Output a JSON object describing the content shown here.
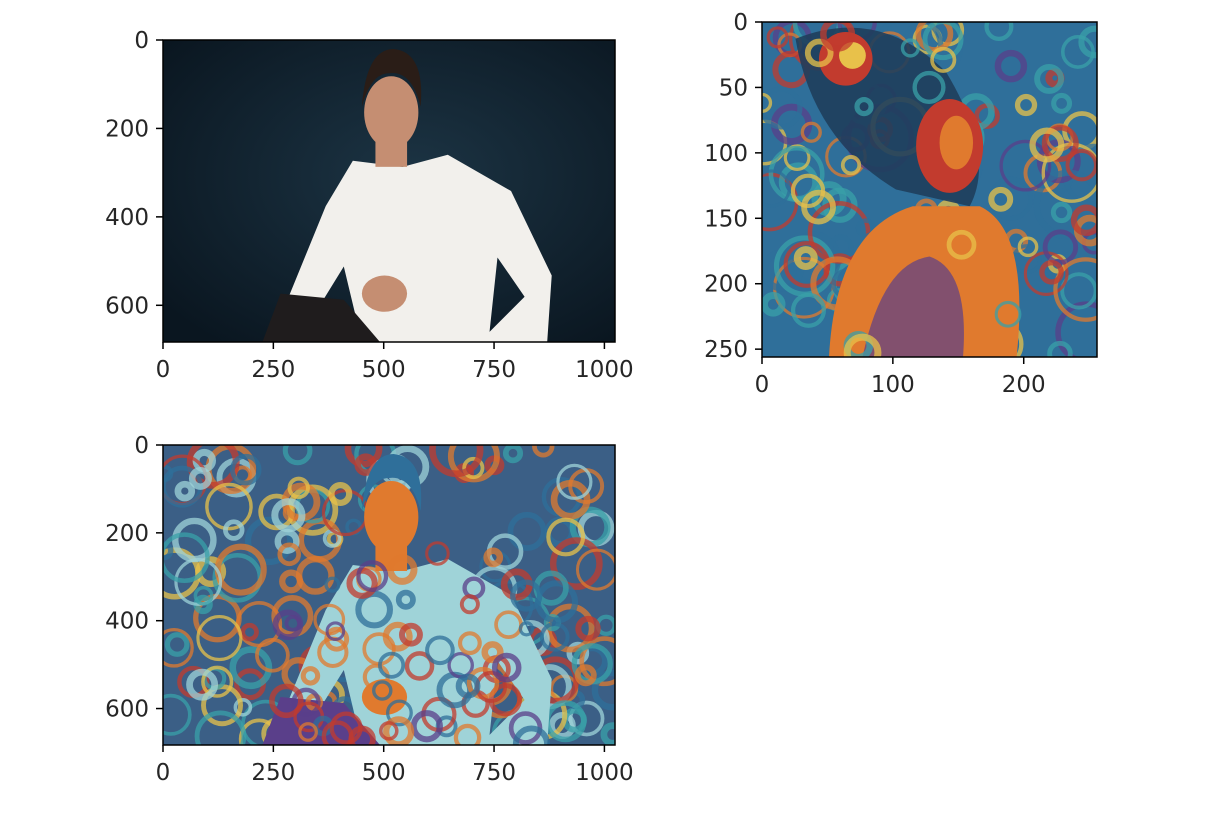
{
  "chart_data": [
    {
      "type": "image",
      "name": "content-image",
      "content": "portrait photograph of a smiling man in a white shirt on a dark background",
      "xlim": [
        0,
        1024
      ],
      "ylim": [
        683,
        0
      ],
      "xticks": [
        0,
        250,
        500,
        750,
        1000
      ],
      "yticks": [
        0,
        200,
        400,
        600
      ],
      "xticklabels": [
        "0",
        "250",
        "500",
        "750",
        "1000"
      ],
      "yticklabels": [
        "0",
        "200",
        "400",
        "600"
      ],
      "grid": false,
      "legend": null
    },
    {
      "type": "image",
      "name": "style-image",
      "content": "colorful swirl painting of a woman with a flower in her hair",
      "xlim": [
        0,
        256
      ],
      "ylim": [
        256,
        0
      ],
      "xticks": [
        0,
        100,
        200
      ],
      "yticks": [
        0,
        50,
        100,
        150,
        200,
        250
      ],
      "xticklabels": [
        "0",
        "100",
        "200"
      ],
      "yticklabels": [
        "0",
        "50",
        "100",
        "150",
        "200",
        "250"
      ],
      "grid": false,
      "legend": null
    },
    {
      "type": "image",
      "name": "stylized-image",
      "content": "the portrait re-rendered in the swirling multicolor painting style",
      "xlim": [
        0,
        1024
      ],
      "ylim": [
        683,
        0
      ],
      "xticks": [
        0,
        250,
        500,
        750,
        1000
      ],
      "yticks": [
        0,
        200,
        400,
        600
      ],
      "xticklabels": [
        "0",
        "250",
        "500",
        "750",
        "1000"
      ],
      "yticklabels": [
        "0",
        "200",
        "400",
        "600"
      ],
      "grid": false,
      "legend": null
    }
  ],
  "colors": {
    "axis": "#000000",
    "tick_text": "#262626",
    "photo_bg": "#0a1620",
    "shirt": "#f2f0ec",
    "skin": "#c58e72",
    "hair": "#2a1d17",
    "pants": "#1f1c1d",
    "swirl_blue": "#2f6f9a",
    "swirl_teal": "#3aa0a8",
    "swirl_orange": "#e07a2e",
    "swirl_red": "#c23b2e",
    "swirl_yellow": "#e8c14a",
    "swirl_purple": "#5a3f8a",
    "light_cyan": "#9fd3d8"
  }
}
